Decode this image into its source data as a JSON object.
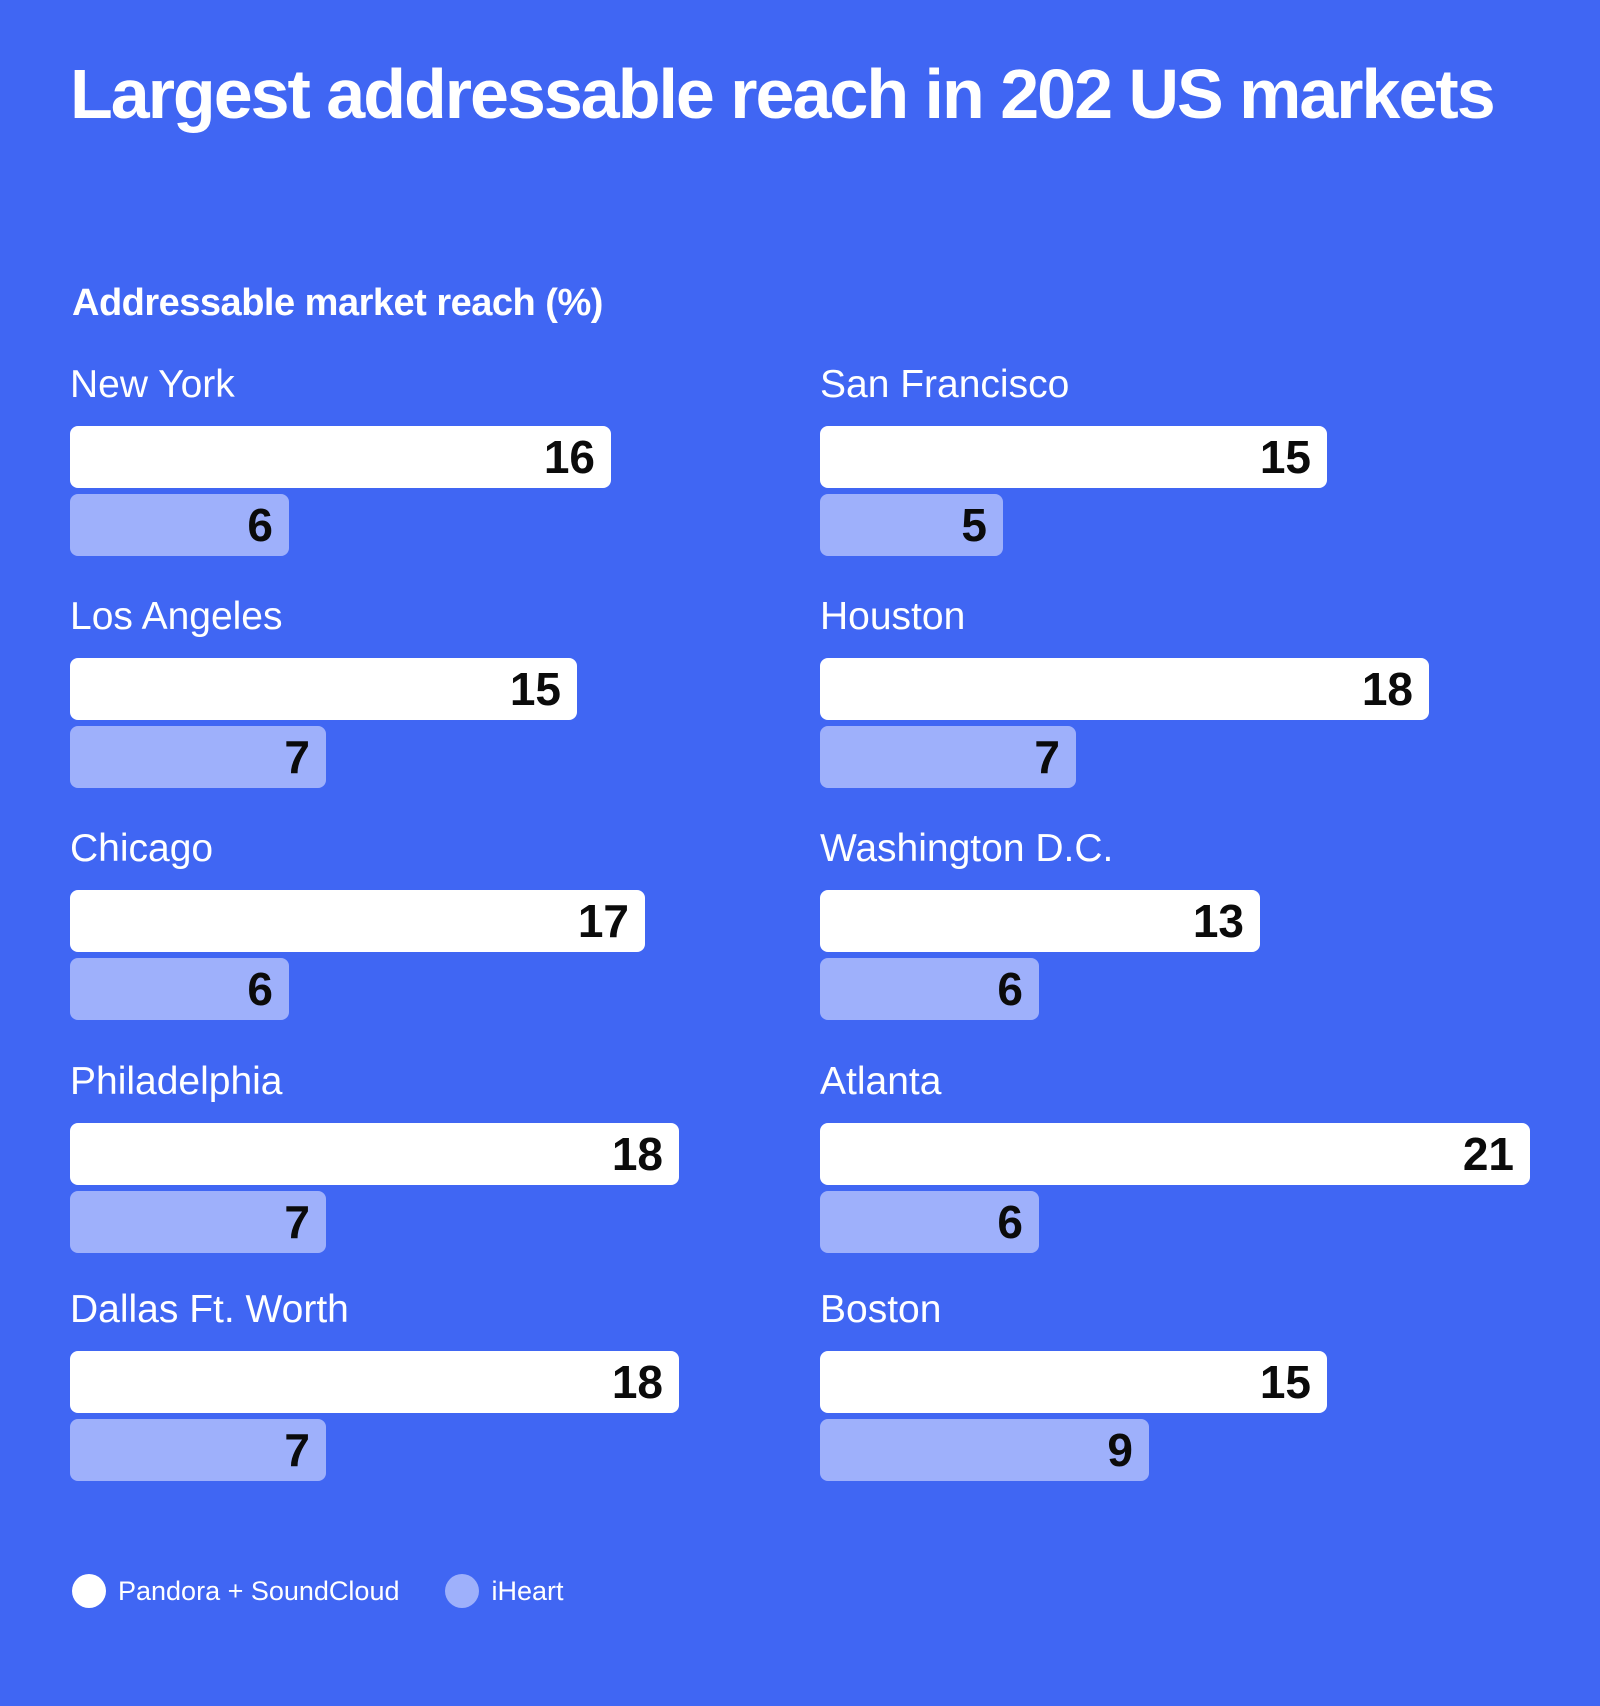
{
  "chart_data": {
    "type": "bar",
    "orientation": "horizontal",
    "title": "Largest addressable reach in 202 US markets",
    "subtitle": "Addressable market reach (%)",
    "xlabel": "",
    "ylabel": "Addressable market reach (%)",
    "xlim": [
      0,
      21
    ],
    "grid": false,
    "legend_position": "bottom-left",
    "categories": [
      "New York",
      "Los Angeles",
      "Chicago",
      "Philadelphia",
      "Dallas Ft. Worth",
      "San Francisco",
      "Houston",
      "Washington D.C.",
      "Atlanta",
      "Boston"
    ],
    "series": [
      {
        "name": "Pandora + SoundCloud",
        "color": "#ffffff",
        "values": [
          16,
          15,
          17,
          18,
          18,
          15,
          18,
          13,
          21,
          15
        ]
      },
      {
        "name": "iHeart",
        "color": "#9eb0fb",
        "values": [
          6,
          7,
          6,
          7,
          7,
          5,
          7,
          6,
          6,
          9
        ]
      }
    ]
  },
  "colors": {
    "background": "#4066f3",
    "text_on_bar": "#0b0b0b"
  }
}
